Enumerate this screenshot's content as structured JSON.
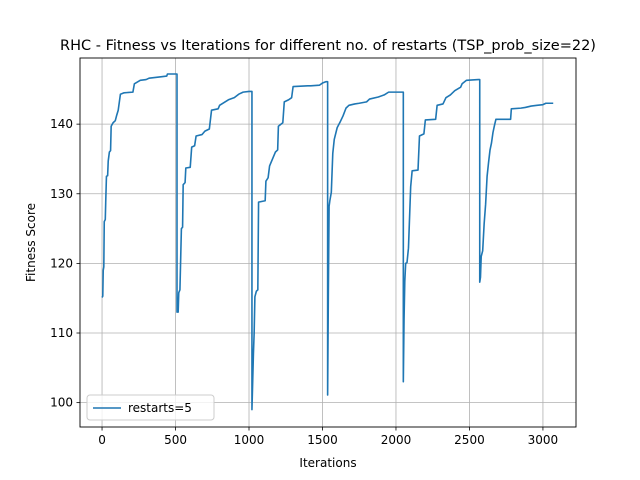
{
  "chart_data": {
    "type": "line",
    "title": "RHC - Fitness vs Iterations for different no. of restarts (TSP_prob_size=22)",
    "xlabel": "Iterations",
    "ylabel": "Fitness Score",
    "xlim": [
      -150,
      3225
    ],
    "ylim": [
      96.5,
      149.5
    ],
    "xticks": [
      0,
      500,
      1000,
      1500,
      2000,
      2500,
      3000
    ],
    "yticks": [
      100,
      110,
      120,
      130,
      140
    ],
    "grid": true,
    "legend_position": "lower left",
    "line_color": "#1f77b4",
    "series": [
      {
        "name": "restarts=5",
        "points": [
          [
            0,
            115.1
          ],
          [
            5,
            115.3
          ],
          [
            8,
            119.0
          ],
          [
            12,
            119.5
          ],
          [
            15,
            126.0
          ],
          [
            22,
            126.3
          ],
          [
            25,
            128.8
          ],
          [
            30,
            132.5
          ],
          [
            38,
            132.6
          ],
          [
            42,
            134.7
          ],
          [
            50,
            136.0
          ],
          [
            58,
            136.2
          ],
          [
            62,
            139.7
          ],
          [
            75,
            140.2
          ],
          [
            90,
            140.5
          ],
          [
            100,
            141.3
          ],
          [
            110,
            142.0
          ],
          [
            125,
            144.3
          ],
          [
            150,
            144.5
          ],
          [
            210,
            144.6
          ],
          [
            220,
            145.8
          ],
          [
            260,
            146.3
          ],
          [
            300,
            146.4
          ],
          [
            320,
            146.6
          ],
          [
            400,
            146.8
          ],
          [
            440,
            146.9
          ],
          [
            445,
            147.2
          ],
          [
            510,
            147.2
          ],
          [
            510,
            113.0
          ],
          [
            518,
            113.0
          ],
          [
            522,
            115.8
          ],
          [
            530,
            116.2
          ],
          [
            540,
            125.0
          ],
          [
            548,
            125.2
          ],
          [
            552,
            131.3
          ],
          [
            565,
            131.6
          ],
          [
            570,
            133.7
          ],
          [
            600,
            133.8
          ],
          [
            610,
            136.7
          ],
          [
            630,
            136.9
          ],
          [
            640,
            138.3
          ],
          [
            680,
            138.5
          ],
          [
            700,
            139.0
          ],
          [
            730,
            139.3
          ],
          [
            745,
            142.0
          ],
          [
            790,
            142.2
          ],
          [
            800,
            142.7
          ],
          [
            830,
            143.1
          ],
          [
            860,
            143.5
          ],
          [
            900,
            143.8
          ],
          [
            930,
            144.3
          ],
          [
            960,
            144.6
          ],
          [
            1000,
            144.7
          ],
          [
            1020,
            144.7
          ],
          [
            1020,
            99.0
          ],
          [
            1025,
            103.0
          ],
          [
            1030,
            107.0
          ],
          [
            1035,
            110.0
          ],
          [
            1040,
            115.2
          ],
          [
            1050,
            116.0
          ],
          [
            1060,
            116.2
          ],
          [
            1065,
            128.8
          ],
          [
            1110,
            129.0
          ],
          [
            1115,
            131.8
          ],
          [
            1130,
            132.3
          ],
          [
            1140,
            134.0
          ],
          [
            1180,
            136.0
          ],
          [
            1195,
            136.3
          ],
          [
            1200,
            139.7
          ],
          [
            1230,
            140.2
          ],
          [
            1240,
            143.2
          ],
          [
            1270,
            143.5
          ],
          [
            1290,
            143.8
          ],
          [
            1300,
            145.4
          ],
          [
            1400,
            145.5
          ],
          [
            1420,
            145.5
          ],
          [
            1480,
            145.6
          ],
          [
            1500,
            145.9
          ],
          [
            1525,
            146.1
          ],
          [
            1535,
            146.1
          ],
          [
            1535,
            101.1
          ],
          [
            1540,
            116.0
          ],
          [
            1545,
            128.2
          ],
          [
            1550,
            129.0
          ],
          [
            1560,
            130.2
          ],
          [
            1570,
            135.8
          ],
          [
            1580,
            137.8
          ],
          [
            1600,
            139.5
          ],
          [
            1620,
            140.3
          ],
          [
            1640,
            141.2
          ],
          [
            1660,
            142.3
          ],
          [
            1680,
            142.7
          ],
          [
            1720,
            142.9
          ],
          [
            1750,
            143.0
          ],
          [
            1800,
            143.2
          ],
          [
            1820,
            143.6
          ],
          [
            1880,
            143.9
          ],
          [
            1920,
            144.2
          ],
          [
            1950,
            144.6
          ],
          [
            2000,
            144.6
          ],
          [
            2050,
            144.6
          ],
          [
            2050,
            103.0
          ],
          [
            2055,
            112.0
          ],
          [
            2060,
            117.4
          ],
          [
            2066,
            120.0
          ],
          [
            2075,
            120.1
          ],
          [
            2085,
            122.2
          ],
          [
            2100,
            131.0
          ],
          [
            2110,
            133.3
          ],
          [
            2150,
            133.4
          ],
          [
            2160,
            138.3
          ],
          [
            2190,
            138.6
          ],
          [
            2200,
            140.6
          ],
          [
            2270,
            140.7
          ],
          [
            2280,
            142.7
          ],
          [
            2320,
            142.9
          ],
          [
            2340,
            143.8
          ],
          [
            2370,
            144.2
          ],
          [
            2400,
            144.8
          ],
          [
            2440,
            145.3
          ],
          [
            2450,
            145.8
          ],
          [
            2480,
            146.3
          ],
          [
            2560,
            146.4
          ],
          [
            2570,
            146.4
          ],
          [
            2570,
            117.3
          ],
          [
            2575,
            118.0
          ],
          [
            2580,
            121.0
          ],
          [
            2590,
            121.8
          ],
          [
            2600,
            125.7
          ],
          [
            2610,
            128.5
          ],
          [
            2620,
            132.5
          ],
          [
            2630,
            134.5
          ],
          [
            2640,
            136.3
          ],
          [
            2650,
            137.3
          ],
          [
            2660,
            138.8
          ],
          [
            2670,
            139.8
          ],
          [
            2680,
            140.7
          ],
          [
            2700,
            140.7
          ],
          [
            2780,
            140.7
          ],
          [
            2785,
            142.2
          ],
          [
            2850,
            142.3
          ],
          [
            2880,
            142.4
          ],
          [
            2920,
            142.6
          ],
          [
            2960,
            142.7
          ],
          [
            3000,
            142.8
          ],
          [
            3020,
            143.0
          ],
          [
            3060,
            143.0
          ],
          [
            3070,
            143.0
          ]
        ]
      }
    ]
  }
}
